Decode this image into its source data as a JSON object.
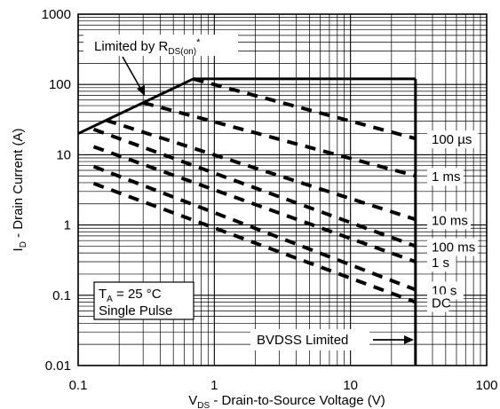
{
  "chart_data": {
    "type": "line",
    "xscale": "log",
    "yscale": "log",
    "xlim": [
      0.1,
      100
    ],
    "ylim": [
      0.01,
      1000
    ],
    "grid": true,
    "xlabel": {
      "main": "V",
      "sub": "DS",
      "rest": " - Drain-to-Source Voltage (V)"
    },
    "ylabel": {
      "main": "I",
      "sub": "D",
      "rest": " - Drain Current (A)"
    },
    "xticks": [
      {
        "value": 0.1,
        "label": "0.1"
      },
      {
        "value": 1,
        "label": "1"
      },
      {
        "value": 10,
        "label": "10"
      },
      {
        "value": 100,
        "label": "100"
      }
    ],
    "yticks": [
      {
        "value": 0.01,
        "label": "0.01"
      },
      {
        "value": 0.1,
        "label": "0.1"
      },
      {
        "value": 1,
        "label": "1"
      },
      {
        "value": 10,
        "label": "10"
      },
      {
        "value": 100,
        "label": "100"
      },
      {
        "value": 1000,
        "label": "1000"
      }
    ],
    "limits": [
      {
        "kind": "rdson",
        "x": [
          0.1,
          0.7
        ],
        "y": [
          20,
          120
        ]
      },
      {
        "kind": "current",
        "x": [
          0.7,
          30
        ],
        "y": [
          120,
          120
        ]
      },
      {
        "kind": "bvdss",
        "x": [
          30,
          30
        ],
        "y": [
          0.01,
          120
        ]
      }
    ],
    "series": [
      {
        "name": "100 µs",
        "x": [
          0.7,
          30
        ],
        "y": [
          120,
          17
        ]
      },
      {
        "name": "1 ms",
        "x": [
          0.3,
          30
        ],
        "y": [
          55,
          5
        ]
      },
      {
        "name": "10 ms",
        "x": [
          0.16,
          30
        ],
        "y": [
          31,
          1.2
        ]
      },
      {
        "name": "100 ms",
        "x": [
          0.13,
          30
        ],
        "y": [
          23,
          0.5
        ]
      },
      {
        "name": "1 s",
        "x": [
          0.13,
          30
        ],
        "y": [
          13,
          0.3
        ]
      },
      {
        "name": "10 s",
        "x": [
          0.13,
          30
        ],
        "y": [
          6.8,
          0.12
        ]
      },
      {
        "name": "DC",
        "x": [
          0.13,
          30
        ],
        "y": [
          3.9,
          0.08
        ]
      }
    ],
    "annotations": {
      "rdson": {
        "text": "Limited by R",
        "sub": "DS(on)",
        "sup": "*"
      },
      "conditions": [
        {
          "main": "T",
          "sub": "A",
          "rest": " = 25 °C"
        },
        {
          "main": "Single Pulse",
          "sub": "",
          "rest": ""
        }
      ],
      "bvdss": "BVDSS Limited"
    },
    "colors": {
      "line": "#000000",
      "grid": "#000000",
      "background": "#ffffff"
    }
  }
}
